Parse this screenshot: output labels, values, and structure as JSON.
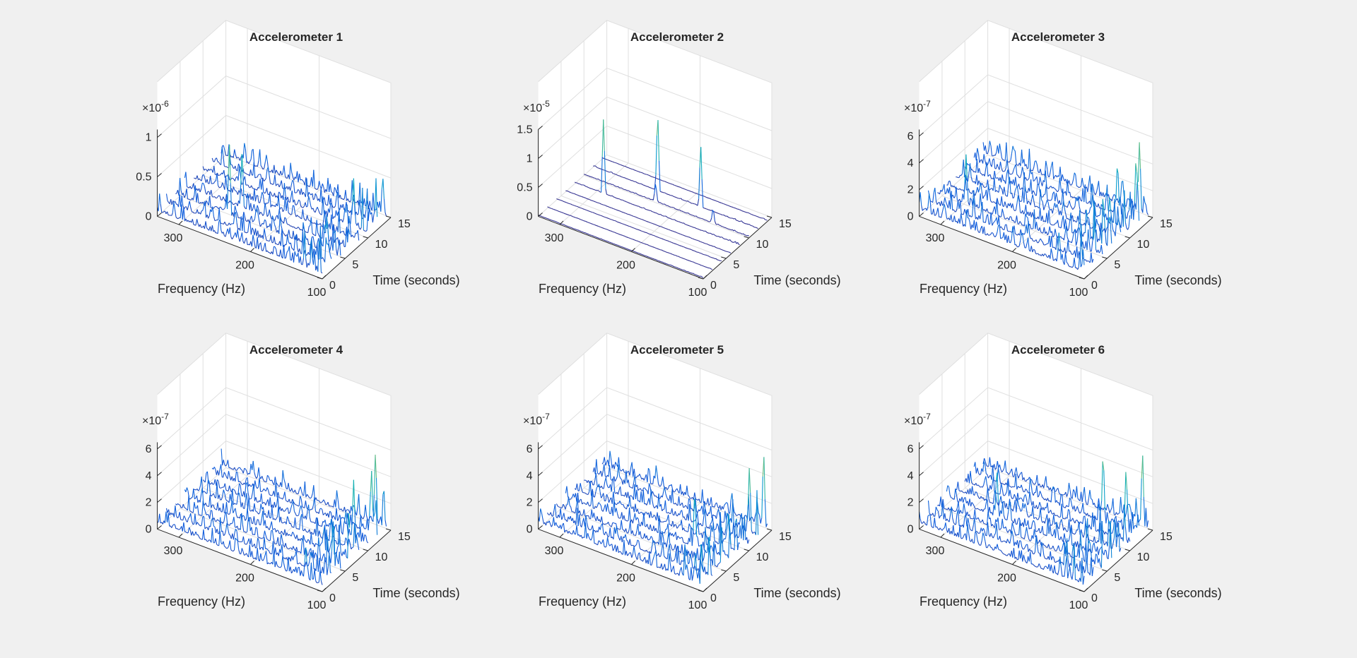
{
  "figure": {
    "background": "#f0f0f0",
    "plot_box_color": "#ffffff",
    "grid_color": "#dfdfdf",
    "axis_color": "#262626",
    "colormap": "parula"
  },
  "chart_data": [
    {
      "type": "waterfall-3d",
      "title": "Accelerometer 1",
      "xlabel": "Frequency (Hz)",
      "ylabel": "Time (seconds)",
      "zlabel": "",
      "exponent_label": "×10",
      "exponent_power": "-6",
      "x_ticks": [
        "300",
        "200",
        "100"
      ],
      "y_ticks": [
        "0",
        "5",
        "10",
        "15"
      ],
      "z_ticks": [
        "0",
        "0.5",
        "1"
      ],
      "xlim": [
        100,
        330
      ],
      "ylim": [
        0,
        15
      ],
      "zlim": [
        0,
        1.1
      ],
      "grid": true,
      "trace_times": [
        0,
        2,
        4,
        6,
        8,
        10,
        12,
        14
      ],
      "baseline": 0.07,
      "amplitude": 0.25,
      "peaks": [
        {
          "freq": 255,
          "time": 4,
          "value": 1.0
        },
        {
          "freq": 250,
          "time": 6,
          "value": 0.82
        },
        {
          "freq": 120,
          "time": 10,
          "value": 0.7
        },
        {
          "freq": 105,
          "time": 14,
          "value": 0.6
        }
      ]
    },
    {
      "type": "waterfall-3d",
      "title": "Accelerometer 2",
      "xlabel": "Frequency (Hz)",
      "ylabel": "Time (seconds)",
      "zlabel": "",
      "exponent_label": "×10",
      "exponent_power": "-5",
      "x_ticks": [
        "300",
        "200",
        "100"
      ],
      "y_ticks": [
        "0",
        "5",
        "10",
        "15"
      ],
      "z_ticks": [
        "0",
        "0.5",
        "1",
        "1.5"
      ],
      "xlim": [
        100,
        330
      ],
      "ylim": [
        0,
        15
      ],
      "zlim": [
        0,
        1.5
      ],
      "grid": true,
      "trace_times": [
        0,
        2,
        4,
        6,
        8,
        10,
        12,
        14
      ],
      "baseline": 0.02,
      "amplitude": 0.02,
      "peaks": [
        {
          "freq": 290,
          "time": 8,
          "value": 1.35
        },
        {
          "freq": 240,
          "time": 12,
          "value": 1.45
        },
        {
          "freq": 180,
          "time": 12,
          "value": 1.15
        },
        {
          "freq": 230,
          "time": 10,
          "value": 0.35
        },
        {
          "freq": 150,
          "time": 10,
          "value": 0.3
        }
      ],
      "active_times": [
        8,
        10,
        12
      ]
    },
    {
      "type": "waterfall-3d",
      "title": "Accelerometer 3",
      "xlabel": "Frequency (Hz)",
      "ylabel": "Time (seconds)",
      "zlabel": "",
      "exponent_label": "×10",
      "exponent_power": "-7",
      "x_ticks": [
        "300",
        "200",
        "100"
      ],
      "y_ticks": [
        "0",
        "5",
        "10",
        "15"
      ],
      "z_ticks": [
        "0",
        "2",
        "4",
        "6"
      ],
      "xlim": [
        100,
        330
      ],
      "ylim": [
        0,
        15
      ],
      "zlim": [
        0,
        6.5
      ],
      "grid": true,
      "trace_times": [
        0,
        2,
        4,
        6,
        8,
        10,
        12,
        14
      ],
      "baseline": 0.5,
      "amplitude": 1.6,
      "peaks": [
        {
          "freq": 112,
          "time": 14,
          "value": 6.2
        },
        {
          "freq": 104,
          "time": 12,
          "value": 6.0
        },
        {
          "freq": 130,
          "time": 12,
          "value": 5.0
        },
        {
          "freq": 290,
          "time": 4,
          "value": 4.4
        }
      ]
    },
    {
      "type": "waterfall-3d",
      "title": "Accelerometer 4",
      "xlabel": "Frequency (Hz)",
      "ylabel": "Time (seconds)",
      "zlabel": "",
      "exponent_label": "×10",
      "exponent_power": "-7",
      "x_ticks": [
        "300",
        "200",
        "100"
      ],
      "y_ticks": [
        "0",
        "5",
        "10",
        "15"
      ],
      "z_ticks": [
        "0",
        "2",
        "4",
        "6"
      ],
      "xlim": [
        100,
        330
      ],
      "ylim": [
        0,
        15
      ],
      "zlim": [
        0,
        6.5
      ],
      "grid": true,
      "trace_times": [
        0,
        2,
        4,
        6,
        8,
        10,
        12,
        14
      ],
      "baseline": 0.5,
      "amplitude": 1.4,
      "peaks": [
        {
          "freq": 115,
          "time": 14,
          "value": 6.3
        },
        {
          "freq": 108,
          "time": 12,
          "value": 5.8
        },
        {
          "freq": 120,
          "time": 10,
          "value": 5.0
        }
      ]
    },
    {
      "type": "waterfall-3d",
      "title": "Accelerometer 5",
      "xlabel": "Frequency (Hz)",
      "ylabel": "Time (seconds)",
      "zlabel": "",
      "exponent_label": "×10",
      "exponent_power": "-7",
      "x_ticks": [
        "300",
        "200",
        "100"
      ],
      "y_ticks": [
        "0",
        "5",
        "10",
        "15"
      ],
      "z_ticks": [
        "0",
        "2",
        "4",
        "6"
      ],
      "xlim": [
        100,
        330
      ],
      "ylim": [
        0,
        15
      ],
      "zlim": [
        0,
        6.5
      ],
      "grid": true,
      "trace_times": [
        0,
        2,
        4,
        6,
        8,
        10,
        12,
        14
      ],
      "baseline": 0.5,
      "amplitude": 1.5,
      "peaks": [
        {
          "freq": 105,
          "time": 14,
          "value": 6.5
        },
        {
          "freq": 112,
          "time": 12,
          "value": 5.8
        },
        {
          "freq": 150,
          "time": 6,
          "value": 5.0
        }
      ]
    },
    {
      "type": "waterfall-3d",
      "title": "Accelerometer 6",
      "xlabel": "Frequency (Hz)",
      "ylabel": "Time (seconds)",
      "zlabel": "",
      "exponent_label": "×10",
      "exponent_power": "-7",
      "x_ticks": [
        "300",
        "200",
        "100"
      ],
      "y_ticks": [
        "0",
        "5",
        "10",
        "15"
      ],
      "z_ticks": [
        "0",
        "2",
        "4",
        "6"
      ],
      "xlim": [
        100,
        330
      ],
      "ylim": [
        0,
        15
      ],
      "zlim": [
        0,
        6.5
      ],
      "grid": true,
      "trace_times": [
        0,
        2,
        4,
        6,
        8,
        10,
        12,
        14
      ],
      "baseline": 0.5,
      "amplitude": 1.5,
      "peaks": [
        {
          "freq": 108,
          "time": 14,
          "value": 6.4
        },
        {
          "freq": 150,
          "time": 12,
          "value": 6.2
        },
        {
          "freq": 118,
          "time": 12,
          "value": 5.6
        },
        {
          "freq": 260,
          "time": 6,
          "value": 4.6
        }
      ]
    }
  ]
}
